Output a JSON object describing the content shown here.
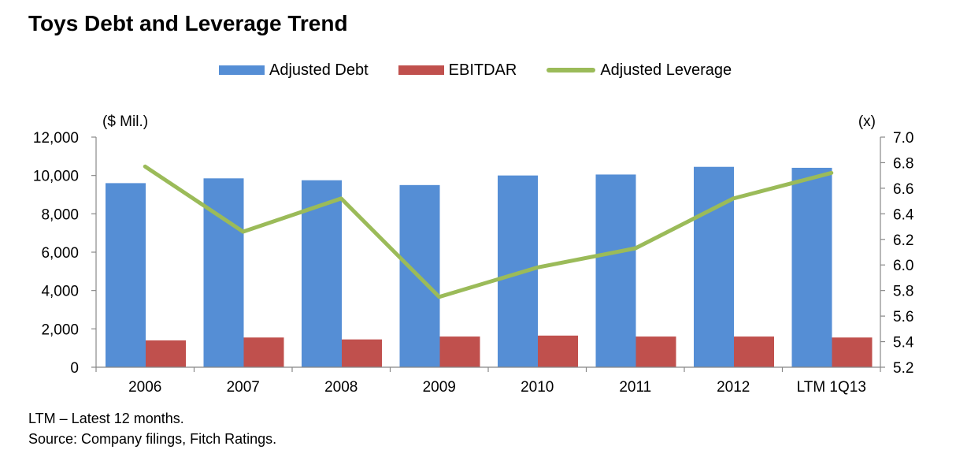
{
  "chart_data": {
    "type": "bar",
    "title": "Toys Debt and Leverage Trend",
    "categories": [
      "2006",
      "2007",
      "2008",
      "2009",
      "2010",
      "2011",
      "2012",
      "LTM 1Q13"
    ],
    "series": [
      {
        "name": "Adjusted Debt",
        "kind": "bar",
        "axis": "left",
        "color": "#558ED5",
        "values": [
          9600,
          9850,
          9750,
          9500,
          10000,
          10050,
          10450,
          10400
        ]
      },
      {
        "name": "EBITDAR",
        "kind": "bar",
        "axis": "left",
        "color": "#C0504D",
        "values": [
          1400,
          1550,
          1450,
          1600,
          1650,
          1600,
          1600,
          1550
        ]
      },
      {
        "name": "Adjusted Leverage",
        "kind": "line",
        "axis": "right",
        "color": "#9BBB59",
        "values": [
          6.77,
          6.26,
          6.52,
          5.75,
          5.98,
          6.13,
          6.52,
          6.72
        ]
      }
    ],
    "ylabel_left": "($ Mil.)",
    "ylabel_right": "(x)",
    "ylim_left": [
      0,
      12000
    ],
    "ylim_right": [
      5.2,
      7.0
    ],
    "yticks_left": [
      "0",
      "2,000",
      "4,000",
      "6,000",
      "8,000",
      "10,000",
      "12,000"
    ],
    "yticks_right": [
      "5.2",
      "5.4",
      "5.6",
      "5.8",
      "6.0",
      "6.2",
      "6.4",
      "6.6",
      "6.8",
      "7.0"
    ],
    "grid": false,
    "legend": "top"
  },
  "notes": [
    "LTM – Latest 12 months.",
    "Source: Company filings, Fitch Ratings."
  ]
}
